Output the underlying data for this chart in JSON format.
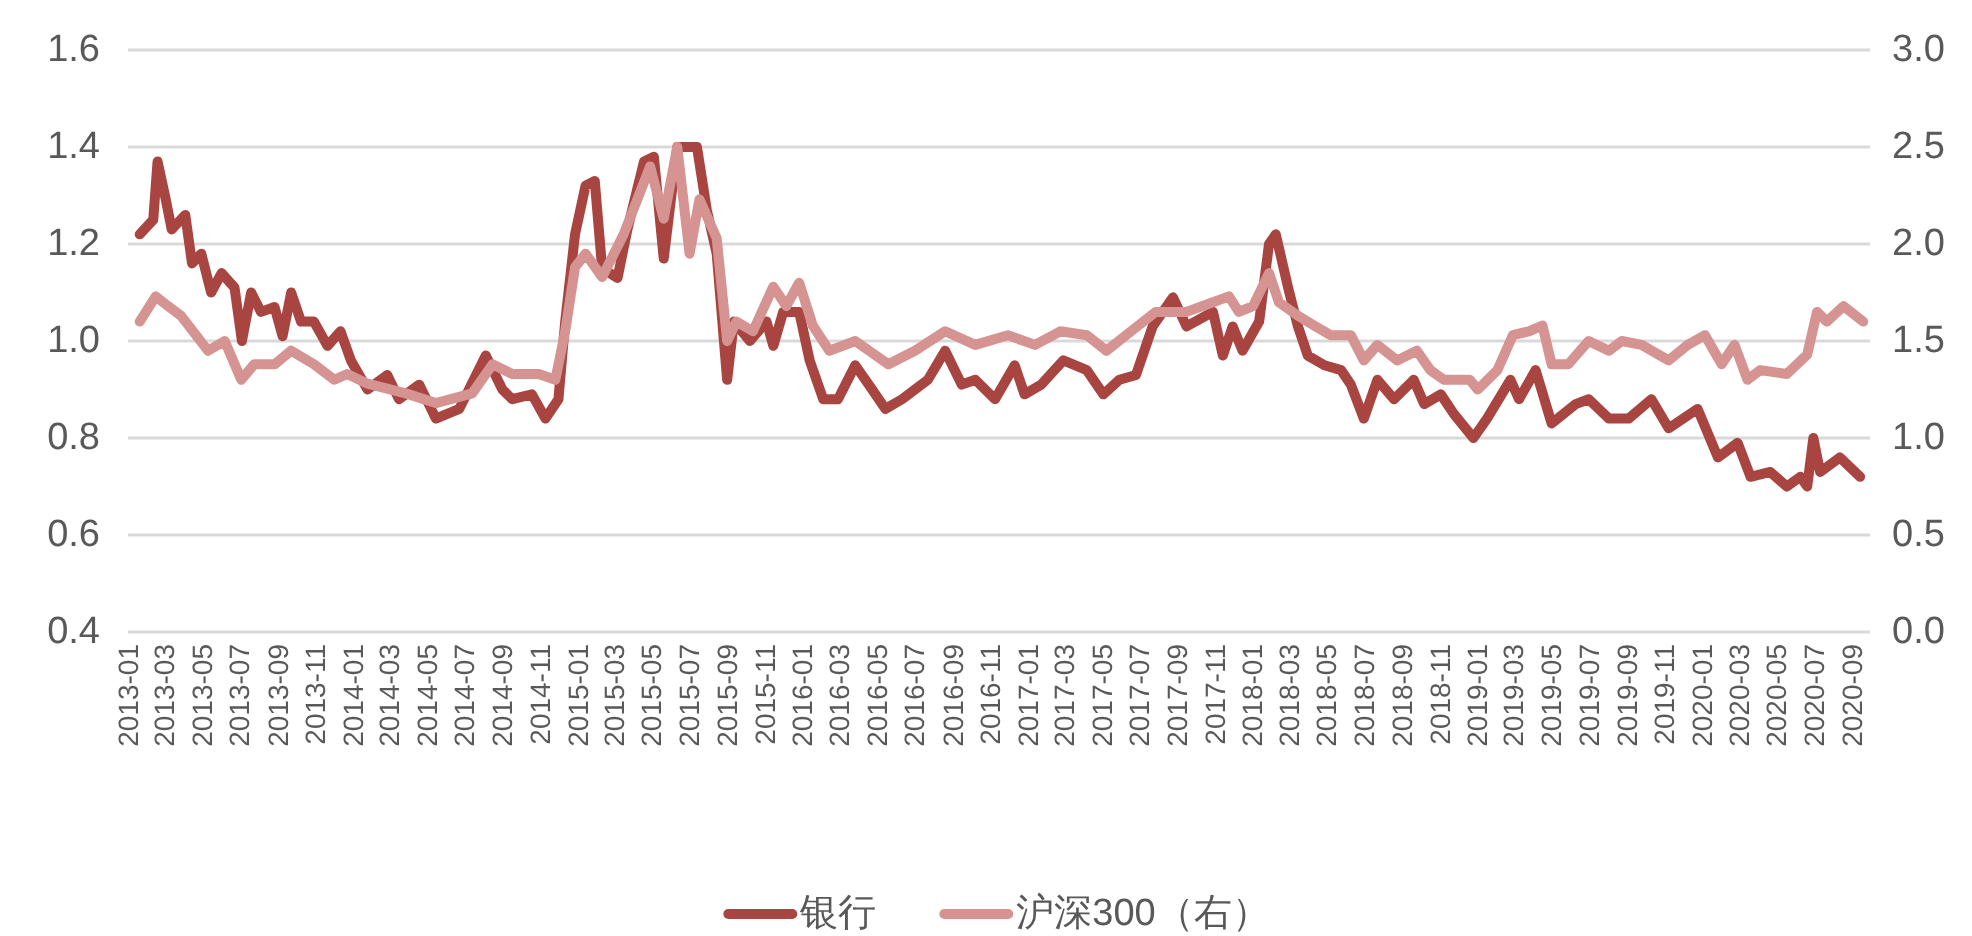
{
  "chart_data": {
    "type": "line",
    "x": [
      "2013-01-20",
      "2013-02-11",
      "2013-02-18",
      "2013-03-02",
      "2013-03-13",
      "2013-04-04",
      "2013-04-15",
      "2013-04-30",
      "2013-05-16",
      "2013-06-02",
      "2013-06-23",
      "2013-07-05",
      "2013-07-20",
      "2013-08-05",
      "2013-08-27",
      "2013-09-09",
      "2013-09-23",
      "2013-10-09",
      "2013-10-30",
      "2013-11-21",
      "2013-12-12",
      "2013-12-29",
      "2014-01-25",
      "2014-02-26",
      "2014-03-17",
      "2014-04-19",
      "2014-05-16",
      "2014-06-23",
      "2014-08-05",
      "2014-09-01",
      "2014-09-17",
      "2014-10-19",
      "2014-11-10",
      "2014-12-01",
      "2014-12-12",
      "2014-12-28",
      "2015-01-14",
      "2015-01-29",
      "2015-02-10",
      "2015-03-07",
      "2015-03-23",
      "2015-04-19",
      "2015-05-05",
      "2015-05-21",
      "2015-06-12",
      "2015-07-14",
      "2015-07-30",
      "2015-08-15",
      "2015-09-01",
      "2015-09-12",
      "2015-10-08",
      "2015-11-04",
      "2015-11-15",
      "2015-12-01",
      "2015-12-27",
      "2016-01-13",
      "2016-02-04",
      "2016-02-28",
      "2016-03-27",
      "2016-04-18",
      "2016-05-15",
      "2016-06-11",
      "2016-07-23",
      "2016-08-20",
      "2016-09-16",
      "2016-10-08",
      "2016-11-09",
      "2016-12-11",
      "2016-12-27",
      "2017-01-23",
      "2017-02-28",
      "2017-04-07",
      "2017-05-04",
      "2017-05-30",
      "2017-06-26",
      "2017-07-23",
      "2017-08-25",
      "2017-09-16",
      "2017-10-29",
      "2017-11-14",
      "2017-11-30",
      "2017-12-16",
      "2018-01-12",
      "2018-01-28",
      "2018-02-08",
      "2018-02-28",
      "2018-03-16",
      "2018-04-01",
      "2018-04-28",
      "2018-05-25",
      "2018-06-10",
      "2018-07-01",
      "2018-07-23",
      "2018-08-19",
      "2018-09-20",
      "2018-10-07",
      "2018-11-03",
      "2018-11-24",
      "2018-12-26",
      "2019-01-17",
      "2019-02-24",
      "2019-03-10",
      "2019-04-06",
      "2019-05-02",
      "2019-06-10",
      "2019-07-01",
      "2019-08-03",
      "2019-09-04",
      "2019-10-11",
      "2019-11-08",
      "2019-12-25",
      "2020-01-27",
      "2020-02-28",
      "2020-03-20",
      "2020-04-21",
      "2020-05-18",
      "2020-06-09",
      "2020-06-20",
      "2020-06-30",
      "2020-07-11",
      "2020-08-12",
      "2020-09-14"
    ],
    "series": [
      {
        "name": "银行",
        "color": "#a84541",
        "values": [
          1.22,
          1.25,
          1.37,
          1.3,
          1.23,
          1.26,
          1.16,
          1.18,
          1.1,
          1.14,
          1.11,
          1.0,
          1.1,
          1.06,
          1.07,
          1.01,
          1.1,
          1.04,
          1.04,
          0.99,
          1.02,
          0.96,
          0.9,
          0.93,
          0.88,
          0.91,
          0.84,
          0.86,
          0.97,
          0.9,
          0.88,
          0.89,
          0.84,
          0.88,
          1.04,
          1.22,
          1.32,
          1.33,
          1.15,
          1.13,
          1.23,
          1.37,
          1.38,
          1.17,
          1.4,
          1.4,
          1.27,
          1.18,
          0.92,
          1.04,
          1.0,
          1.04,
          0.99,
          1.06,
          1.06,
          0.96,
          0.88,
          0.88,
          0.95,
          0.91,
          0.86,
          0.88,
          0.92,
          0.98,
          0.91,
          0.92,
          0.88,
          0.95,
          0.89,
          0.91,
          0.96,
          0.94,
          0.89,
          0.92,
          0.93,
          1.03,
          1.09,
          1.03,
          1.06,
          0.97,
          1.03,
          0.98,
          1.04,
          1.2,
          1.22,
          1.11,
          1.03,
          0.97,
          0.95,
          0.94,
          0.91,
          0.84,
          0.92,
          0.88,
          0.92,
          0.87,
          0.89,
          0.85,
          0.8,
          0.84,
          0.92,
          0.88,
          0.94,
          0.83,
          0.87,
          0.88,
          0.84,
          0.84,
          0.88,
          0.82,
          0.86,
          0.76,
          0.79,
          0.72,
          0.73,
          0.7,
          0.72,
          0.7,
          0.8,
          0.73,
          0.76,
          0.72
        ]
      },
      {
        "name": "沪深300（右）",
        "color": "#d59391",
        "axis": "y2",
        "x": [
          "2013-01-20",
          "2013-02-15",
          "2013-03-07",
          "2013-03-28",
          "2013-05-11",
          "2013-06-07",
          "2013-07-04",
          "2013-07-25",
          "2013-08-27",
          "2013-09-23",
          "2013-10-30",
          "2013-12-02",
          "2013-12-23",
          "2014-01-25",
          "2014-03-28",
          "2014-05-16",
          "2014-07-14",
          "2014-08-16",
          "2014-09-17",
          "2014-10-30",
          "2014-11-26",
          "2014-12-12",
          "2014-12-28",
          "2015-01-14",
          "2015-02-10",
          "2015-03-17",
          "2015-04-29",
          "2015-05-21",
          "2015-06-12",
          "2015-07-02",
          "2015-07-18",
          "2015-08-15",
          "2015-09-01",
          "2015-09-16",
          "2015-10-13",
          "2015-11-15",
          "2015-12-06",
          "2015-12-27",
          "2016-01-18",
          "2016-02-14",
          "2016-03-27",
          "2016-05-20",
          "2016-07-02",
          "2016-08-20",
          "2016-10-08",
          "2016-11-30",
          "2017-01-13",
          "2017-02-23",
          "2017-04-07",
          "2017-05-09",
          "2017-06-10",
          "2017-07-28",
          "2017-09-16",
          "2017-10-29",
          "2017-11-24",
          "2017-12-10",
          "2018-01-02",
          "2018-01-28",
          "2018-02-13",
          "2018-03-16",
          "2018-04-11",
          "2018-05-08",
          "2018-06-10",
          "2018-07-01",
          "2018-07-23",
          "2018-08-24",
          "2018-09-25",
          "2018-10-17",
          "2018-11-08",
          "2018-12-20",
          "2019-01-02",
          "2019-02-03",
          "2019-02-28",
          "2019-03-26",
          "2019-04-17",
          "2019-05-02",
          "2019-05-29",
          "2019-07-01",
          "2019-08-03",
          "2019-08-24",
          "2019-09-25",
          "2019-11-08",
          "2019-12-09",
          "2020-01-06",
          "2020-02-02",
          "2020-02-23",
          "2020-03-15",
          "2020-04-05",
          "2020-05-18",
          "2020-06-20",
          "2020-07-06",
          "2020-07-22",
          "2020-08-18",
          "2020-09-19"
        ],
        "values": [
          1.6,
          1.73,
          1.68,
          1.63,
          1.45,
          1.5,
          1.3,
          1.38,
          1.38,
          1.45,
          1.38,
          1.3,
          1.33,
          1.28,
          1.23,
          1.18,
          1.23,
          1.38,
          1.33,
          1.33,
          1.3,
          1.55,
          1.88,
          1.95,
          1.83,
          2.05,
          2.4,
          2.13,
          2.5,
          1.95,
          2.23,
          2.03,
          1.5,
          1.6,
          1.55,
          1.78,
          1.68,
          1.8,
          1.58,
          1.45,
          1.5,
          1.38,
          1.45,
          1.55,
          1.48,
          1.53,
          1.48,
          1.55,
          1.53,
          1.45,
          1.53,
          1.65,
          1.65,
          1.7,
          1.73,
          1.65,
          1.68,
          1.85,
          1.7,
          1.63,
          1.58,
          1.53,
          1.53,
          1.4,
          1.48,
          1.4,
          1.45,
          1.35,
          1.3,
          1.3,
          1.25,
          1.35,
          1.53,
          1.55,
          1.58,
          1.38,
          1.38,
          1.5,
          1.45,
          1.5,
          1.48,
          1.4,
          1.48,
          1.53,
          1.38,
          1.48,
          1.3,
          1.35,
          1.33,
          1.43,
          1.65,
          1.6,
          1.68,
          1.6
        ]
      }
    ],
    "xlim": [
      "2013-01-01",
      "2020-09-30"
    ],
    "xticks": [
      "2013-01",
      "2013-03",
      "2013-05",
      "2013-07",
      "2013-09",
      "2013-11",
      "2014-01",
      "2014-03",
      "2014-05",
      "2014-07",
      "2014-09",
      "2014-11",
      "2015-01",
      "2015-03",
      "2015-05",
      "2015-07",
      "2015-09",
      "2015-11",
      "2016-01",
      "2016-03",
      "2016-05",
      "2016-07",
      "2016-09",
      "2016-11",
      "2017-01",
      "2017-03",
      "2017-05",
      "2017-07",
      "2017-09",
      "2017-11",
      "2018-01",
      "2018-03",
      "2018-05",
      "2018-07",
      "2018-09",
      "2018-11",
      "2019-01",
      "2019-03",
      "2019-05",
      "2019-07",
      "2019-09",
      "2019-11",
      "2020-01",
      "2020-03",
      "2020-05",
      "2020-07",
      "2020-09"
    ],
    "ylim": [
      0.4,
      1.6
    ],
    "yticks": [
      0.4,
      0.6,
      0.8,
      {
        "value": 1,
        "label": "1.0"
      },
      1.2,
      1.4,
      1.6
    ],
    "y2lim": [
      0,
      3
    ],
    "y2ticks": [
      {
        "value": 0,
        "label": "0.0"
      },
      0.5,
      {
        "value": 1,
        "label": "1.0"
      },
      1.5,
      {
        "value": 2,
        "label": "2.0"
      },
      2.5,
      {
        "value": 3,
        "label": "3.0"
      }
    ],
    "grid": "y",
    "legend": "bottom",
    "line_style": "solid",
    "marker": "none"
  }
}
